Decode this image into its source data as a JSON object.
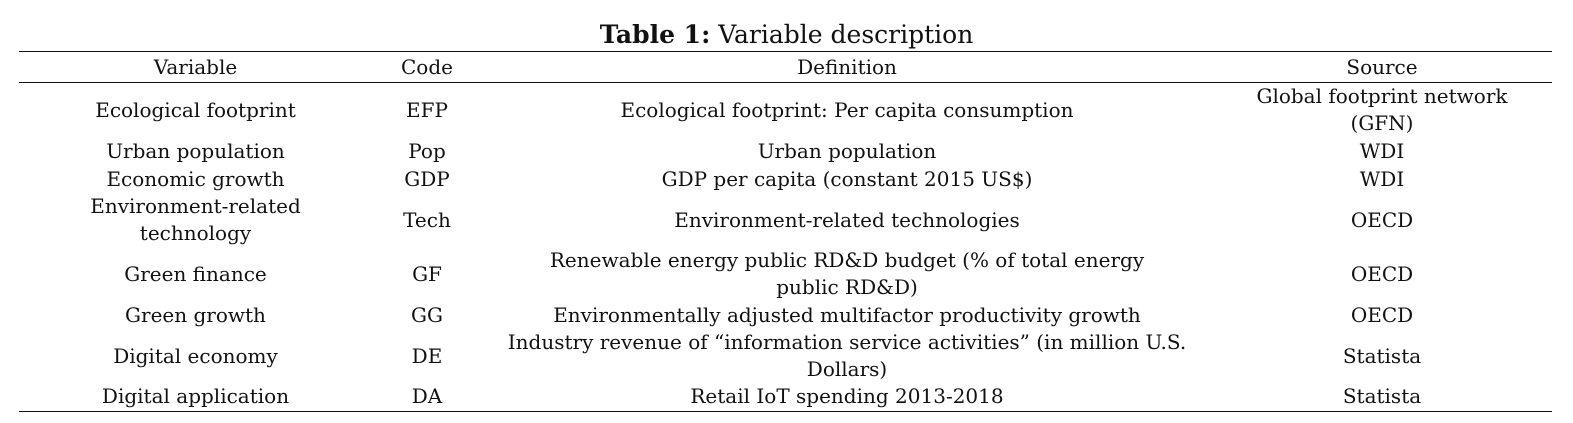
{
  "caption": {
    "label": "Table 1:",
    "text": " Variable description"
  },
  "table": {
    "headers": {
      "variable": "Variable",
      "code": "Code",
      "definition": "Definition",
      "source": "Source"
    },
    "rows": [
      {
        "variable": "Ecological footprint",
        "code": "EFP",
        "definition": "Ecological footprint: Per capita consumption",
        "source": "Global footprint network (GFN)"
      },
      {
        "variable": "Urban population",
        "code": "Pop",
        "definition": "Urban population",
        "source": "WDI"
      },
      {
        "variable": "Economic growth",
        "code": "GDP",
        "definition": "GDP per capita (constant 2015 US$)",
        "source": "WDI"
      },
      {
        "variable": "Environment-related technology",
        "code": "Tech",
        "definition": "Environment-related technologies",
        "source": "OECD"
      },
      {
        "variable": "Green finance",
        "code": "GF",
        "definition": "Renewable energy public RD&D budget (% of total energy public RD&D)",
        "source": "OECD"
      },
      {
        "variable": "Green growth",
        "code": "GG",
        "definition": "Environmentally adjusted multifactor productivity growth",
        "source": "OECD"
      },
      {
        "variable": "Digital economy",
        "code": "DE",
        "definition": "Industry revenue of “information service activities” (in million U.S. Dollars)",
        "source": "Statista"
      },
      {
        "variable": "Digital application",
        "code": "DA",
        "definition": "Retail IoT spending 2013-2018",
        "source": "Statista"
      }
    ]
  }
}
